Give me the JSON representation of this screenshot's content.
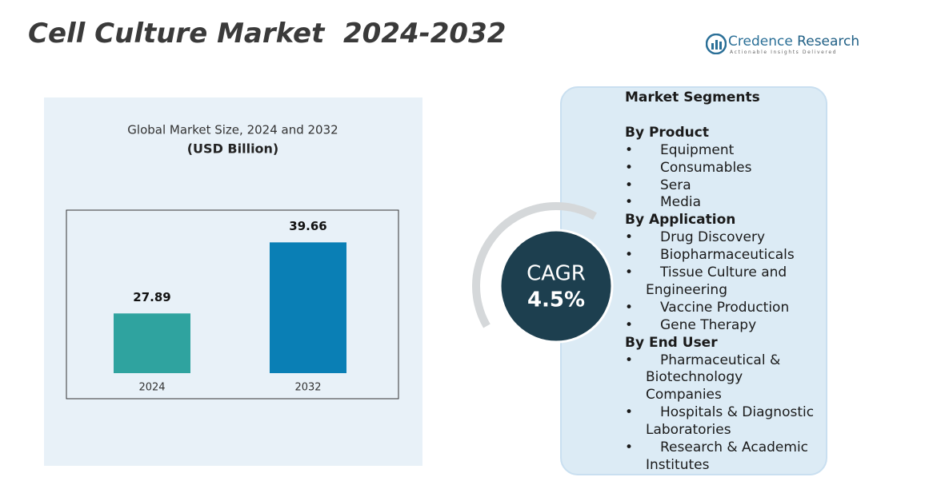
{
  "title": "Cell Culture Market  2024-2032",
  "logo": {
    "name_part1": "Credence",
    "name_part2": " Research",
    "tagline": "Actionable Insights Delivered"
  },
  "chart_data": {
    "type": "bar",
    "title": "Global Market Size, 2024 and 2032",
    "subtitle": "(USD Billion)",
    "categories": [
      "2024",
      "2032"
    ],
    "values": [
      27.89,
      39.66
    ],
    "colors": [
      "#2fa39f",
      "#0a7fb5"
    ],
    "ylim": [
      18,
      45
    ]
  },
  "cagr": {
    "label": "CAGR",
    "value": "4.5%"
  },
  "segments": {
    "title": "Market Segments",
    "groups": [
      {
        "heading": "By Product",
        "items": [
          "Equipment",
          "Consumables",
          "Sera",
          "Media"
        ]
      },
      {
        "heading": "By Application",
        "items": [
          "Drug Discovery",
          "Biopharmaceuticals",
          "Tissue Culture and Engineering",
          "Vaccine Production",
          "Gene Therapy"
        ]
      },
      {
        "heading": "By End User",
        "items": [
          "Pharmaceutical & Biotechnology Companies",
          "Hospitals & Diagnostic Laboratories",
          "Research & Academic Institutes"
        ]
      }
    ]
  }
}
